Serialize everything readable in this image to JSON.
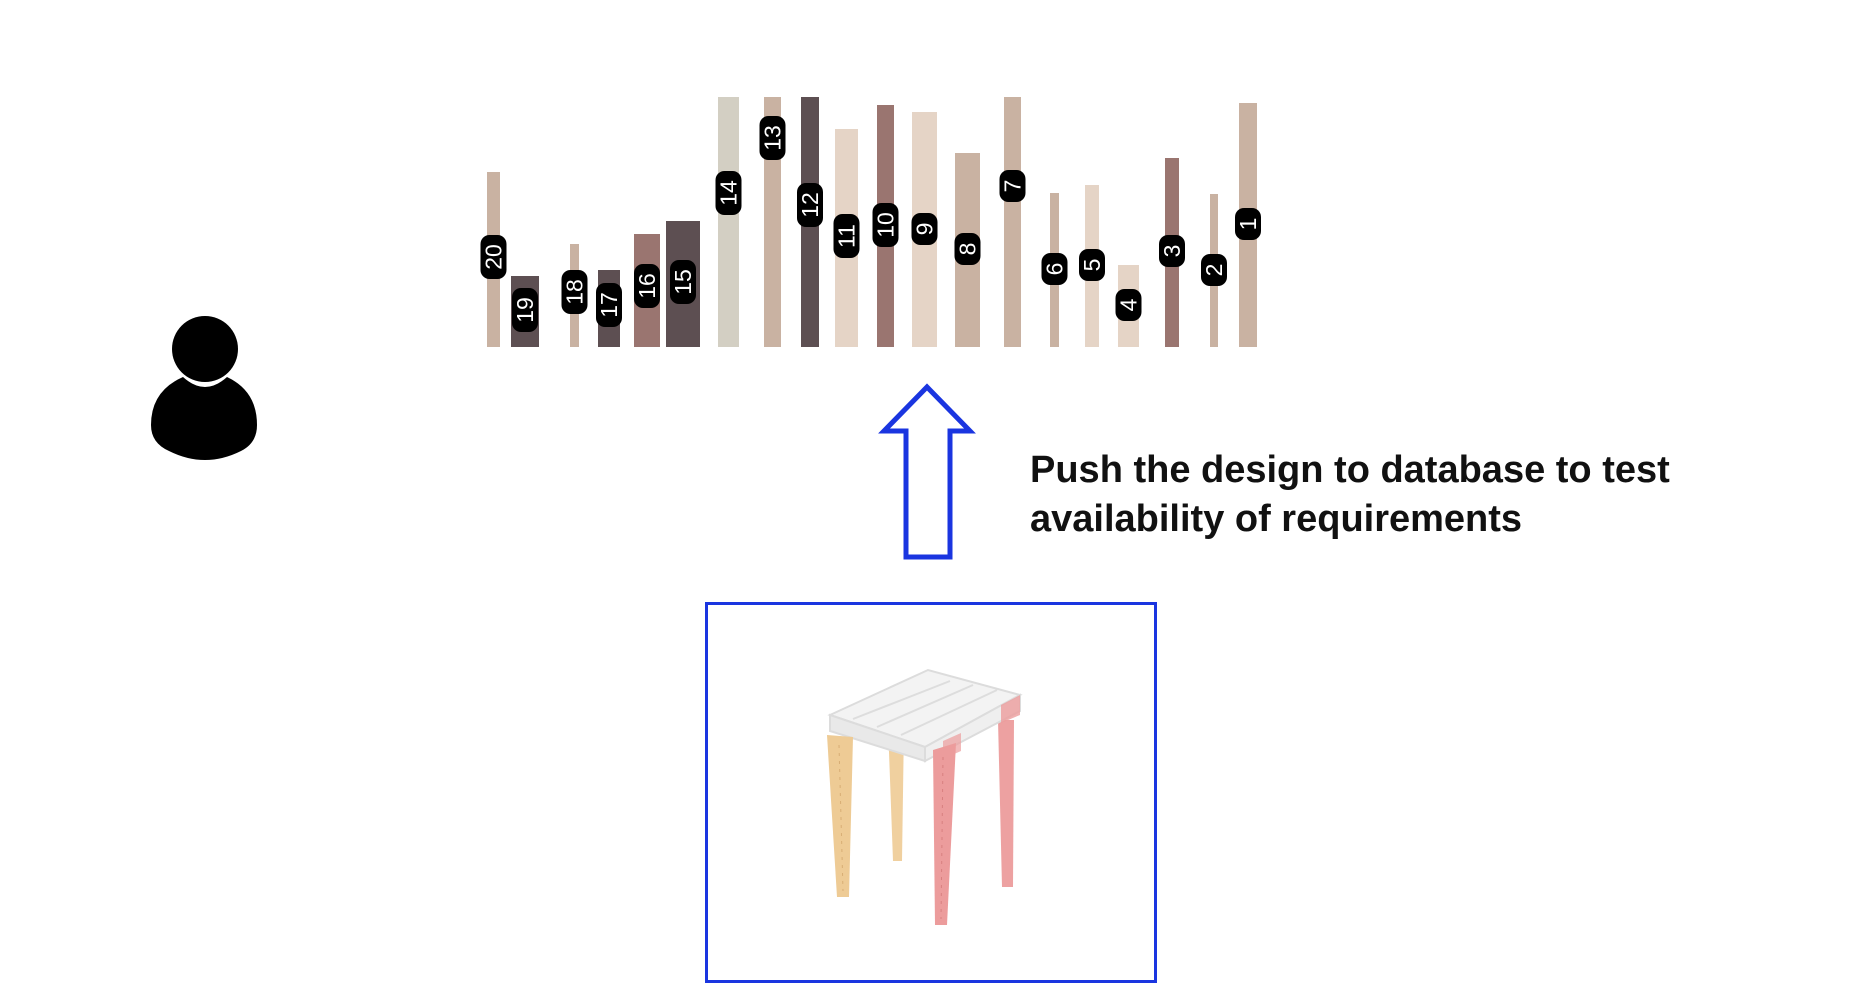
{
  "caption": {
    "line1": "Push the design to database to test",
    "line2": "availability of requirements"
  },
  "icons": {
    "user": "user-icon",
    "arrow": "up-arrow-icon",
    "design": "stool-model-icon"
  },
  "colors": {
    "frame": "#1a35e0",
    "arrow": "#1a35e0",
    "label_bg": "#000000",
    "leg_tan": "#eecb95",
    "leg_red": "#ec9c9c"
  },
  "stock_items": [
    {
      "id": "20",
      "color": "#c9b2a2"
    },
    {
      "id": "19",
      "color": "#5d4f52"
    },
    {
      "id": "18",
      "color": "#c9b2a2"
    },
    {
      "id": "17",
      "color": "#5d4f52"
    },
    {
      "id": "16",
      "color": "#9a7570"
    },
    {
      "id": "15",
      "color": "#5d4f52"
    },
    {
      "id": "14",
      "color": "#d3cfc3"
    },
    {
      "id": "13",
      "color": "#c9b2a2"
    },
    {
      "id": "12",
      "color": "#5d4f52"
    },
    {
      "id": "11",
      "color": "#e5d4c6"
    },
    {
      "id": "10",
      "color": "#9a7570"
    },
    {
      "id": "9",
      "color": "#e5d4c6"
    },
    {
      "id": "8",
      "color": "#c9b2a2"
    },
    {
      "id": "7",
      "color": "#c9b2a2"
    },
    {
      "id": "6",
      "color": "#c9b2a2"
    },
    {
      "id": "5",
      "color": "#e5d4c6"
    },
    {
      "id": "4",
      "color": "#e5d4c6"
    },
    {
      "id": "3",
      "color": "#9a7570"
    },
    {
      "id": "2",
      "color": "#c9b2a2"
    },
    {
      "id": "1",
      "color": "#c9b2a2"
    }
  ]
}
